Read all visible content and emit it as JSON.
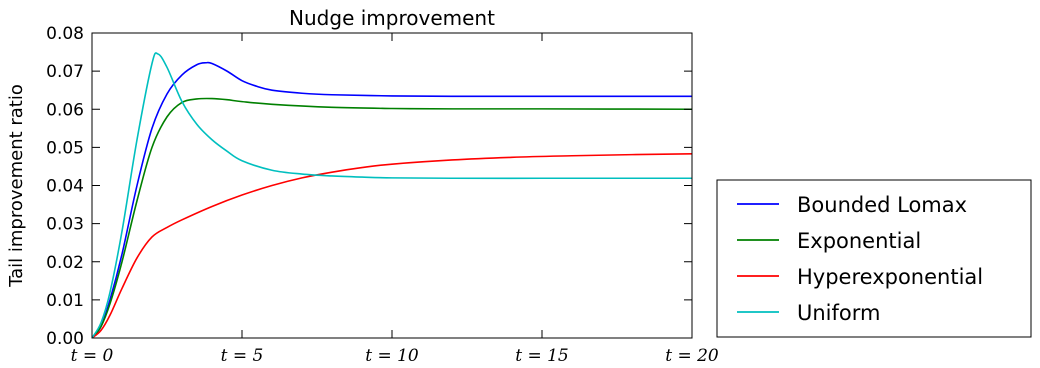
{
  "chart_data": {
    "type": "line",
    "title": "Nudge improvement",
    "xlabel": "",
    "ylabel": "Tail improvement ratio",
    "xlim": [
      0,
      20
    ],
    "ylim": [
      0,
      0.08
    ],
    "grid": false,
    "legend_position": "outside-right-bottom",
    "x_ticks": [
      {
        "value": 0,
        "label": "t = 0"
      },
      {
        "value": 5,
        "label": "t = 5"
      },
      {
        "value": 10,
        "label": "t = 10"
      },
      {
        "value": 15,
        "label": "t = 15"
      },
      {
        "value": 20,
        "label": "t = 20"
      }
    ],
    "y_ticks": [
      {
        "value": 0,
        "label": "0.00"
      },
      {
        "value": 0.01,
        "label": "0.01"
      },
      {
        "value": 0.02,
        "label": "0.02"
      },
      {
        "value": 0.03,
        "label": "0.03"
      },
      {
        "value": 0.04,
        "label": "0.04"
      },
      {
        "value": 0.05,
        "label": "0.05"
      },
      {
        "value": 0.06,
        "label": "0.06"
      },
      {
        "value": 0.07,
        "label": "0.07"
      },
      {
        "value": 0.08,
        "label": "0.08"
      }
    ],
    "series": [
      {
        "name": "Bounded Lomax",
        "color": "#0000ff",
        "x": [
          0,
          0.3,
          0.6,
          1.0,
          1.5,
          2.0,
          2.5,
          3.0,
          3.5,
          3.8,
          4.0,
          4.5,
          5.0,
          5.5,
          6.0,
          7.0,
          8.0,
          10.0,
          12.0,
          15.0,
          18.0,
          20.0
        ],
        "y": [
          0,
          0.003,
          0.01,
          0.022,
          0.04,
          0.055,
          0.064,
          0.069,
          0.0717,
          0.0722,
          0.072,
          0.07,
          0.0675,
          0.066,
          0.065,
          0.0642,
          0.0638,
          0.0635,
          0.0634,
          0.0634,
          0.0634,
          0.0634
        ]
      },
      {
        "name": "Exponential",
        "color": "#008000",
        "x": [
          0,
          0.3,
          0.6,
          1.0,
          1.5,
          2.0,
          2.5,
          3.0,
          3.5,
          4.0,
          4.5,
          5.0,
          6.0,
          8.0,
          10.0,
          12.0,
          15.0,
          20.0
        ],
        "y": [
          0,
          0.003,
          0.009,
          0.02,
          0.036,
          0.05,
          0.058,
          0.0618,
          0.0627,
          0.0628,
          0.0625,
          0.062,
          0.0613,
          0.0605,
          0.0602,
          0.0601,
          0.0601,
          0.06
        ]
      },
      {
        "name": "Hyperexponential",
        "color": "#ff0000",
        "x": [
          0,
          0.3,
          0.6,
          1.0,
          1.5,
          2.0,
          2.5,
          3.0,
          4.0,
          5.0,
          6.0,
          7.0,
          8.0,
          9.0,
          10.0,
          12.0,
          14.0,
          16.0,
          18.0,
          20.0
        ],
        "y": [
          0,
          0.002,
          0.006,
          0.013,
          0.021,
          0.0265,
          0.029,
          0.031,
          0.0345,
          0.0375,
          0.04,
          0.042,
          0.0435,
          0.0447,
          0.0456,
          0.0467,
          0.0474,
          0.0478,
          0.0481,
          0.0483
        ]
      },
      {
        "name": "Uniform",
        "color": "#00bfbf",
        "x": [
          0,
          0.3,
          0.6,
          1.0,
          1.5,
          2.0,
          2.2,
          2.5,
          3.0,
          3.5,
          4.0,
          4.5,
          5.0,
          6.0,
          7.0,
          8.0,
          9.0,
          10.0,
          12.0,
          15.0,
          18.0,
          20.0
        ],
        "y": [
          0,
          0.004,
          0.012,
          0.028,
          0.052,
          0.072,
          0.0745,
          0.071,
          0.062,
          0.056,
          0.052,
          0.049,
          0.0465,
          0.044,
          0.043,
          0.0425,
          0.0422,
          0.042,
          0.0419,
          0.0419,
          0.0419,
          0.0419
        ]
      }
    ]
  }
}
